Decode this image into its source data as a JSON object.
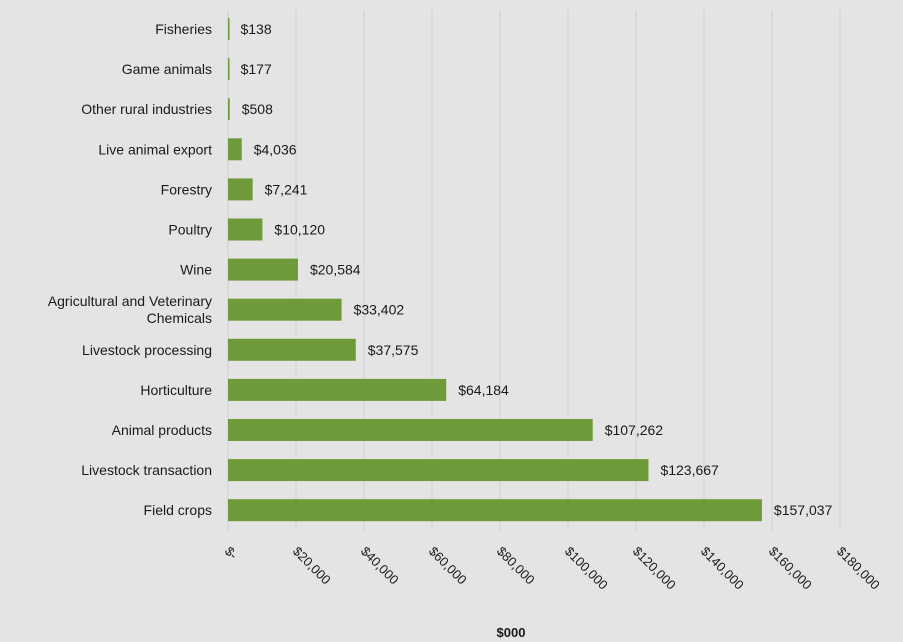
{
  "chart_data": {
    "type": "bar",
    "orientation": "horizontal",
    "categories": [
      "Fisheries",
      "Game animals",
      "Other rural industries",
      "Live animal export",
      "Forestry",
      "Poultry",
      "Wine",
      "Agricultural and Veterinary Chemicals",
      "Livestock processing",
      "Horticulture",
      "Animal products",
      "Livestock transaction",
      "Field crops"
    ],
    "category_lines": [
      [
        "Fisheries"
      ],
      [
        "Game animals"
      ],
      [
        "Other rural industries"
      ],
      [
        "Live animal export"
      ],
      [
        "Forestry"
      ],
      [
        "Poultry"
      ],
      [
        "Wine"
      ],
      [
        "Agricultural and Veterinary",
        "Chemicals"
      ],
      [
        "Livestock processing"
      ],
      [
        "Horticulture"
      ],
      [
        "Animal products"
      ],
      [
        "Livestock transaction"
      ],
      [
        "Field crops"
      ]
    ],
    "values": [
      138,
      177,
      508,
      4036,
      7241,
      10120,
      20584,
      33402,
      37575,
      64184,
      107262,
      123667,
      157037
    ],
    "value_labels": [
      "$138",
      "$177",
      "$508",
      "$4,036",
      "$7,241",
      "$10,120",
      "$20,584",
      "$33,402",
      "$37,575",
      "$64,184",
      "$107,262",
      "$123,667",
      "$157,037"
    ],
    "x_ticks": [
      0,
      20000,
      40000,
      60000,
      80000,
      100000,
      120000,
      140000,
      160000,
      180000
    ],
    "x_tick_labels": [
      "$-",
      "$20,000",
      "$40,000",
      "$60,000",
      "$80,000",
      "$100,000",
      "$120,000",
      "$140,000",
      "$160,000",
      "$180,000"
    ],
    "xlabel": "$000",
    "ylabel": "",
    "title": "",
    "xlim": [
      0,
      180000
    ],
    "grid": "vertical",
    "legend": "none",
    "colors": {
      "bar": "#6f9a3a",
      "grid": "#cfcfcf",
      "background": "#e4e4e4",
      "text": "#1a1a1a"
    }
  }
}
